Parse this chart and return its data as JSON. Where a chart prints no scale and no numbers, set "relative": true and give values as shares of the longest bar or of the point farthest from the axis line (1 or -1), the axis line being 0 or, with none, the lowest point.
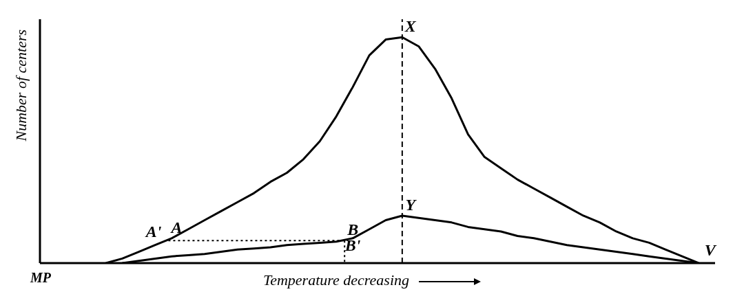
{
  "chart_data": {
    "type": "line",
    "relative": true,
    "xlabel": "Temperature decreasing",
    "ylabel": "Number of centers",
    "categories": [
      null,
      null,
      null,
      null,
      null,
      null,
      null,
      null,
      null,
      null,
      null,
      null,
      null,
      null,
      null,
      null,
      null,
      null,
      null,
      null,
      null,
      null,
      null,
      null,
      null,
      null,
      null,
      null,
      null,
      null,
      null,
      null,
      null,
      null,
      null,
      null,
      null,
      null,
      null,
      null,
      null,
      null
    ],
    "grid": false,
    "legend": false,
    "marker": "none",
    "series": [
      {
        "color": "#000000",
        "values": [
          null,
          null,
          null,
          null,
          0,
          0.02,
          0.05,
          0.08,
          0.11,
          0.15,
          0.19,
          0.23,
          0.27,
          0.31,
          0.36,
          0.4,
          0.46,
          0.54,
          0.65,
          0.78,
          0.92,
          0.99,
          1,
          0.96,
          0.86,
          0.73,
          0.57,
          0.47,
          0.42,
          0.37,
          0.33,
          0.29,
          0.25,
          0.21,
          0.18,
          0.14,
          0.11,
          0.09,
          0.06,
          0.03,
          0,
          null
        ]
      },
      {
        "color": "#000000",
        "values": [
          null,
          null,
          null,
          null,
          null,
          0,
          0.01,
          0.02,
          0.03,
          0.035,
          0.04,
          0.05,
          0.06,
          0.065,
          0.07,
          0.08,
          0.085,
          0.09,
          0.095,
          0.11,
          0.15,
          0.19,
          0.21,
          0.2,
          0.19,
          0.18,
          0.16,
          0.15,
          0.14,
          0.12,
          0.11,
          0.095,
          0.08,
          0.07,
          0.06,
          0.05,
          0.04,
          0.03,
          0.02,
          0.01,
          0,
          null
        ]
      }
    ],
    "annotations": [
      "MP",
      "X",
      "Y",
      "A",
      "A'",
      "B",
      "B'",
      "V"
    ]
  }
}
